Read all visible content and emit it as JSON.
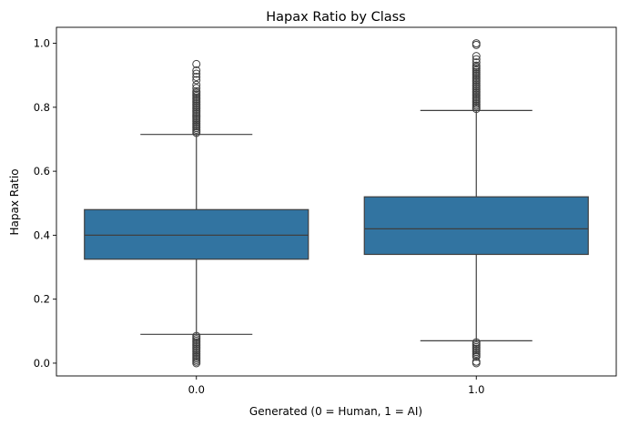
{
  "chart_data": {
    "type": "box",
    "title": "Hapax Ratio by Class",
    "xlabel": "Generated (0 = Human, 1 = AI)",
    "ylabel": "Hapax Ratio",
    "ylim": [
      -0.04,
      1.05
    ],
    "yticks": [
      0.0,
      0.2,
      0.4,
      0.6,
      0.8,
      1.0
    ],
    "ytick_labels": [
      "0.0",
      "0.2",
      "0.4",
      "0.6",
      "0.8",
      "1.0"
    ],
    "categories": [
      "0.0",
      "1.0"
    ],
    "grid": false,
    "colors": {
      "box_fill": "#3274a1",
      "line": "#3f3f3f",
      "axis": "#000000"
    },
    "boxes": [
      {
        "category": "0.0",
        "whisker_low": 0.09,
        "q1": 0.325,
        "median": 0.4,
        "q3": 0.48,
        "whisker_high": 0.715,
        "outliers_low": [
          0.0,
          0.005,
          0.01,
          0.015,
          0.02,
          0.025,
          0.03,
          0.035,
          0.04,
          0.045,
          0.05,
          0.055,
          0.06,
          0.065,
          0.07,
          0.075,
          0.08,
          0.085
        ],
        "outliers_high": [
          0.72,
          0.725,
          0.73,
          0.735,
          0.74,
          0.745,
          0.75,
          0.755,
          0.76,
          0.765,
          0.77,
          0.775,
          0.78,
          0.785,
          0.79,
          0.795,
          0.8,
          0.805,
          0.81,
          0.815,
          0.82,
          0.825,
          0.83,
          0.835,
          0.84,
          0.845,
          0.85,
          0.86,
          0.87,
          0.885,
          0.895,
          0.905,
          0.915,
          0.935
        ]
      },
      {
        "category": "1.0",
        "whisker_low": 0.07,
        "q1": 0.34,
        "median": 0.42,
        "q3": 0.52,
        "whisker_high": 0.79,
        "outliers_low": [
          0.0,
          0.005,
          0.02,
          0.025,
          0.03,
          0.035,
          0.04,
          0.045,
          0.05,
          0.055,
          0.06,
          0.065
        ],
        "outliers_high": [
          0.795,
          0.8,
          0.805,
          0.81,
          0.815,
          0.82,
          0.825,
          0.83,
          0.835,
          0.84,
          0.845,
          0.85,
          0.855,
          0.86,
          0.865,
          0.87,
          0.875,
          0.88,
          0.885,
          0.89,
          0.895,
          0.9,
          0.905,
          0.91,
          0.915,
          0.92,
          0.925,
          0.93,
          0.94,
          0.95,
          0.96,
          0.995,
          1.0
        ]
      }
    ]
  }
}
